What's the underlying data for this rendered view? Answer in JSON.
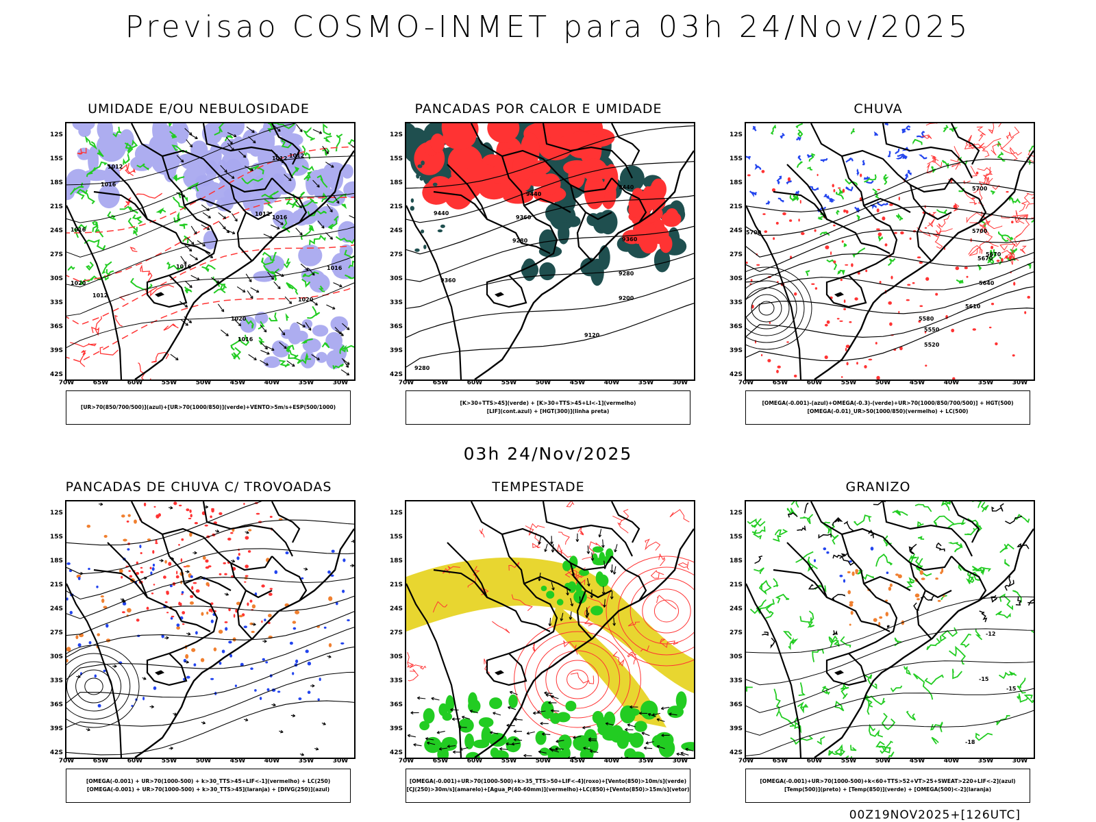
{
  "title": "Previsao COSMO-INMET  para 03h 24/Nov/2025",
  "mid_label": "03h 24/Nov/2025",
  "footer": "00Z19NOV2025+[126UTC]",
  "lat_labels": [
    "12S",
    "15S",
    "18S",
    "21S",
    "24S",
    "27S",
    "30S",
    "33S",
    "36S",
    "39S",
    "42S"
  ],
  "lon_labels": [
    "70W",
    "65W",
    "60W",
    "55W",
    "50W",
    "45W",
    "40W",
    "35W",
    "30W"
  ],
  "colors": {
    "blue_humidity": "#a9a9f0",
    "green": "#22cc22",
    "red": "#ff3333",
    "dark_teal": "#1f4f4f",
    "yellow": "#e8d630",
    "orange": "#f08030",
    "blue_dots": "#2244ee"
  },
  "panels": [
    {
      "id": "umidade",
      "title": "UMIDADE E/OU NEBULOSIDADE",
      "legend": [
        "[UR>70(850/700/500)](azul)+[UR>70(1000/850)](verde)+VENTO>5m/s+ESP(500/1000)"
      ],
      "contour_labels": [
        "1012",
        "1012",
        "1012",
        "1016",
        "1016",
        "1012",
        "1020",
        "1016",
        "1020",
        "1012",
        "1016",
        "1020",
        "1016",
        "1016"
      ]
    },
    {
      "id": "pancadas_calor",
      "title": "PANCADAS POR CALOR E UMIDADE",
      "legend": [
        "[K>30+TTS>45](verde) + [K>30+TTS>45+LI<-1](vermelho)",
        "[LIF](cont.azul) + [HGT(300)](linha preta)"
      ],
      "contour_labels": [
        "9440",
        "9440",
        "9440",
        "9360",
        "9280",
        "9360",
        "9280",
        "9360",
        "9200",
        "9120",
        "9280"
      ]
    },
    {
      "id": "chuva",
      "title": "CHUVA",
      "legend": [
        "[OMEGA(-0.001)-(azul)+OMEGA(-0.3)-(verde)+UR>70(1000/850/700/500)] + HGT(500)",
        "[OMEGA(-0.01)_UR>50(1000/850)(vermelho) + LC(500)"
      ],
      "contour_labels": [
        "5700",
        "5700",
        "5670",
        "5640",
        "5610",
        "5580",
        "5550",
        "5520",
        "5700",
        "5670"
      ]
    },
    {
      "id": "pancadas_trovoadas",
      "title": "PANCADAS DE CHUVA C/ TROVOADAS",
      "legend": [
        "[OMEGA(-0.001) + UR>70(1000-500) + k>30_TTS>45+LIF<-1](vermelho) + LC(250)",
        "[OMEGA(-0.001) + UR>70(1000-500) + k>30_TTS>45](laranja) + [DIVG(250)](azul)"
      ],
      "contour_labels": []
    },
    {
      "id": "tempestade",
      "title": "TEMPESTADE",
      "legend": [
        "[OMEGA(-0.001)+UR>70(1000-500)+k>35_TTS>50+LIF<-4](roxo)+[Vento(850)>10m/s](verde)",
        "[CJ(250)>30m/s](amarelo)+[Agua_P(40-60mm)](vermelho)+LC(850)+[Vento(850)>15m/s](vetor)"
      ],
      "contour_labels": []
    },
    {
      "id": "granizo",
      "title": "GRANIZO",
      "legend": [
        "[OMEGA(-0.001)+UR>70(1000-500)+k<60+TTS>52+VT>25+SWEAT>220+LIF<-2](azul)",
        "[Temp(500)](preto) + [Temp(850)](verde) + [OMEGA(500)<-2](laranja)"
      ],
      "contour_labels": [
        "-12",
        "-15",
        "-15",
        "-18"
      ]
    }
  ]
}
